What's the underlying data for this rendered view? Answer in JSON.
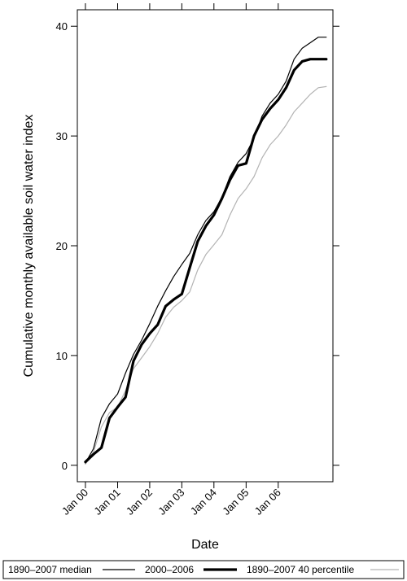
{
  "chart_data": {
    "type": "line",
    "xlabel": "Date",
    "ylabel": "Cumulative monthly available soil water index",
    "xlim": [
      "1999-10-01",
      "2007-09-15"
    ],
    "ylim": [
      -1.5,
      41.5
    ],
    "yticks": [
      0,
      10,
      20,
      30,
      40
    ],
    "xticks": [
      {
        "label": "Jan 00",
        "date": "2000-01-01"
      },
      {
        "label": "Jan 01",
        "date": "2001-01-01"
      },
      {
        "label": "Jan 02",
        "date": "2002-01-01"
      },
      {
        "label": "Jan 03",
        "date": "2003-01-01"
      },
      {
        "label": "Jan 04",
        "date": "2004-01-01"
      },
      {
        "label": "Jan 05",
        "date": "2005-01-01"
      },
      {
        "label": "Jan 06",
        "date": "2006-01-01"
      }
    ],
    "grid": false,
    "legend_position": "bottom",
    "series": [
      {
        "name": "1890–2007 median",
        "color": "#000000",
        "style": "thin",
        "x": [
          "2000-01-01",
          "2000-04-01",
          "2000-07-01",
          "2000-10-01",
          "2001-01-01",
          "2001-04-01",
          "2001-07-01",
          "2001-10-01",
          "2002-01-01",
          "2002-04-01",
          "2002-07-01",
          "2002-10-01",
          "2003-01-01",
          "2003-04-01",
          "2003-07-01",
          "2003-10-01",
          "2004-01-01",
          "2004-04-01",
          "2004-07-01",
          "2004-10-01",
          "2005-01-01",
          "2005-04-01",
          "2005-07-01",
          "2005-10-01",
          "2006-01-01",
          "2006-04-01",
          "2006-07-01",
          "2006-10-01",
          "2007-01-01",
          "2007-04-01",
          "2007-07-01"
        ],
        "values": [
          0.2,
          1.5,
          4.3,
          5.6,
          6.5,
          8.4,
          10.1,
          11.4,
          12.9,
          14.5,
          15.9,
          17.2,
          18.3,
          19.3,
          21.0,
          22.3,
          23.1,
          24.4,
          26.3,
          27.6,
          28.4,
          29.8,
          31.8,
          33.0,
          33.8,
          35.0,
          37.0,
          38.0,
          38.5,
          39.0,
          39.0
        ]
      },
      {
        "name": "2000–2006",
        "color": "#000000",
        "style": "thick",
        "x": [
          "2000-01-01",
          "2000-04-01",
          "2000-07-01",
          "2000-10-01",
          "2001-01-01",
          "2001-04-01",
          "2001-07-01",
          "2001-10-01",
          "2002-01-01",
          "2002-04-01",
          "2002-07-01",
          "2002-10-01",
          "2003-01-01",
          "2003-04-01",
          "2003-07-01",
          "2003-10-01",
          "2004-01-01",
          "2004-04-01",
          "2004-07-01",
          "2004-10-01",
          "2005-01-01",
          "2005-04-01",
          "2005-07-01",
          "2005-10-01",
          "2006-01-01",
          "2006-04-01",
          "2006-07-01",
          "2006-10-01",
          "2007-01-01",
          "2007-04-01",
          "2007-07-01"
        ],
        "values": [
          0.3,
          1.0,
          1.6,
          4.3,
          5.3,
          6.2,
          9.5,
          11.0,
          12.0,
          12.8,
          14.5,
          15.1,
          15.6,
          18.0,
          20.4,
          21.8,
          22.8,
          24.3,
          26.0,
          27.3,
          27.5,
          30.0,
          31.5,
          32.5,
          33.3,
          34.4,
          36.0,
          36.8,
          37.0,
          37.0,
          37.0
        ]
      },
      {
        "name": "1890–2007 40 percentile",
        "color": "#b3b3b3",
        "style": "thin",
        "x": [
          "2000-01-01",
          "2000-04-01",
          "2000-07-01",
          "2000-10-01",
          "2001-01-01",
          "2001-04-01",
          "2001-07-01",
          "2001-10-01",
          "2002-01-01",
          "2002-04-01",
          "2002-07-01",
          "2002-10-01",
          "2003-01-01",
          "2003-04-01",
          "2003-07-01",
          "2003-10-01",
          "2004-01-01",
          "2004-04-01",
          "2004-07-01",
          "2004-10-01",
          "2005-01-01",
          "2005-04-01",
          "2005-07-01",
          "2005-10-01",
          "2006-01-01",
          "2006-04-01",
          "2006-07-01",
          "2006-10-01",
          "2007-01-01",
          "2007-04-01",
          "2007-07-01"
        ],
        "values": [
          0.1,
          1.2,
          3.5,
          4.8,
          5.3,
          6.8,
          8.8,
          9.8,
          10.8,
          12.0,
          13.5,
          14.4,
          15.0,
          15.8,
          17.8,
          19.2,
          20.1,
          21.0,
          22.8,
          24.3,
          25.2,
          26.3,
          28.0,
          29.2,
          30.0,
          31.0,
          32.2,
          33.0,
          33.8,
          34.4,
          34.5
        ]
      }
    ]
  }
}
